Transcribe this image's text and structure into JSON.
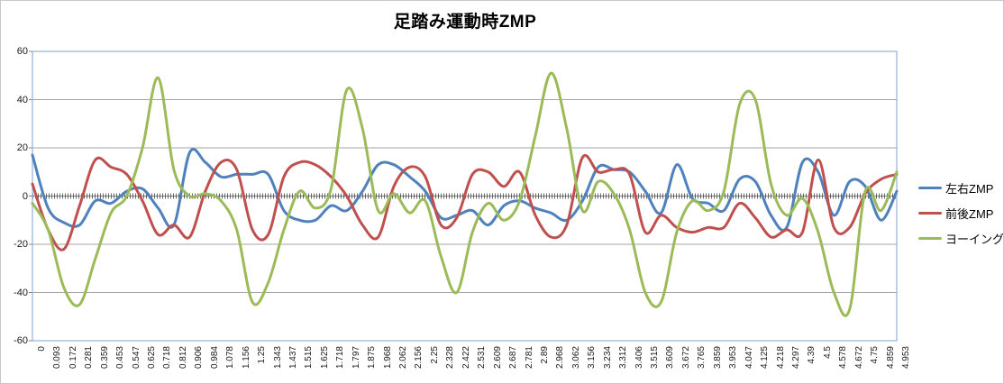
{
  "chart_data": {
    "type": "line",
    "title": "足踏み運動時ZMP",
    "xlabel": "",
    "ylabel": "",
    "ylim": [
      -60,
      60
    ],
    "y_ticks": [
      60,
      40,
      20,
      0,
      -20,
      -40,
      -60
    ],
    "grid": true,
    "legend_position": "right",
    "category_axis_crosses_at": 0,
    "x_labels": [
      "0",
      "0.093",
      "0.172",
      "0.281",
      "0.359",
      "0.453",
      "0.547",
      "0.625",
      "0.718",
      "0.812",
      "0.906",
      "0.984",
      "1.078",
      "1.156",
      "1.25",
      "1.343",
      "1.437",
      "1.515",
      "1.625",
      "1.718",
      "1.797",
      "1.875",
      "1.968",
      "2.062",
      "2.156",
      "2.25",
      "2.328",
      "2.422",
      "2.531",
      "2.609",
      "2.687",
      "2.781",
      "2.89",
      "2.968",
      "3.062",
      "3.156",
      "3.234",
      "3.312",
      "3.406",
      "3.515",
      "3.609",
      "3.672",
      "3.765",
      "3.859",
      "3.953",
      "4.047",
      "4.125",
      "4.218",
      "4.297",
      "4.39",
      "4.5",
      "4.578",
      "4.672",
      "4.75",
      "4.859",
      "4.953"
    ],
    "series": [
      {
        "name": "左右ZMP",
        "color": "#4F81BD",
        "values": [
          17,
          -5,
          -11,
          -12,
          -2,
          -3,
          2,
          3,
          -5,
          -12,
          18,
          14,
          8,
          9,
          9,
          9,
          -6,
          -10,
          -10,
          -4,
          -6,
          2,
          13,
          13,
          8,
          2,
          -9,
          -8,
          -6,
          -12,
          -4,
          -2,
          -5,
          -7,
          -10,
          -2,
          12,
          11,
          10,
          2,
          -7,
          13,
          -1,
          -3,
          -6,
          7,
          6,
          -8,
          -13,
          14,
          10,
          -8,
          6,
          4,
          -10,
          2
        ]
      },
      {
        "name": "前後ZMP",
        "color": "#C0504D",
        "values": [
          5,
          -14,
          -22,
          -4,
          15,
          12,
          9,
          -2,
          -16,
          -12,
          -17,
          2,
          14,
          11,
          -14,
          -16,
          8,
          14,
          13,
          8,
          0,
          -12,
          -17,
          4,
          12,
          8,
          -12,
          -9,
          9,
          10,
          4,
          10,
          -8,
          -17,
          -12,
          16,
          10,
          11,
          9,
          -15,
          -8,
          -13,
          -15,
          -13,
          -13,
          -3,
          -9,
          -17,
          -14,
          -15,
          15,
          -13,
          -13,
          1,
          7,
          9
        ]
      },
      {
        "name": "ヨーイング",
        "color": "#9BBB59",
        "values": [
          -3,
          -14,
          -38,
          -45,
          -26,
          -7,
          0,
          20,
          49,
          11,
          0,
          1,
          -2,
          -14,
          -44,
          -36,
          -14,
          2,
          -5,
          3,
          44,
          28,
          -6,
          1,
          -7,
          -2,
          -25,
          -40,
          -15,
          -3,
          -10,
          -2,
          25,
          51,
          28,
          -6,
          6,
          1,
          -14,
          -40,
          -44,
          -15,
          -2,
          -6,
          2,
          38,
          40,
          5,
          -8,
          -1,
          -15,
          -40,
          -47,
          2,
          -6,
          10
        ]
      }
    ]
  },
  "style_colors": {
    "plot_border": "#94B2D7",
    "gridline": "#A6A6A6",
    "zero_axis": "#808080",
    "category_ticks": "#595959",
    "axis_tick": "#808080"
  }
}
